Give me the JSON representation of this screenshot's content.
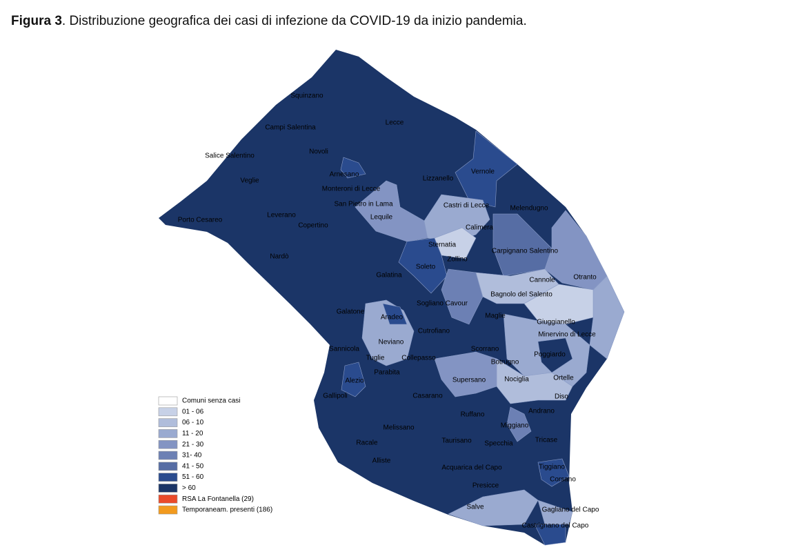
{
  "caption": {
    "label": "Figura 3",
    "text": ". Distribuzione geografica dei casi di infezione da COVID-19 da inizio pandemia."
  },
  "towns": [
    "Squinzano",
    "Campi Salentina",
    "Lecce",
    "Novoli",
    "Salice Salentino",
    "Arnesano",
    "Veglie",
    "Lizzanello",
    "Vernole",
    "Monteroni di Lecce",
    "San Pietro in Lama",
    "Castri di Lecce",
    "Melendugno",
    "Lequile",
    "Porto Cesareo",
    "Leverano",
    "Copertino",
    "Calimera",
    "Sternatia",
    "Carpignano Salentino",
    "Zollino",
    "Soleto",
    "Nardò",
    "Galatina",
    "Cannole",
    "Otranto",
    "Bagnolo del Salento",
    "Sogliano Cavour",
    "Galatone",
    "Aradeo",
    "Maglie",
    "Giuggianello",
    "Cutrofiano",
    "Minervino di Lecce",
    "Neviano",
    "Sannicola",
    "Scorrano",
    "Poggiardo",
    "Tuglie",
    "Collepasso",
    "Botrugno",
    "Parabita",
    "Ortelle",
    "Alezio",
    "Supersano",
    "Nociglia",
    "Gallipoli",
    "Casarano",
    "Diso",
    "Andrano",
    "Ruffano",
    "Miggiano",
    "Melissano",
    "Tricase",
    "Racale",
    "Taurisano",
    "Specchia",
    "Alliste",
    "Acquarica del Capo",
    "Tiggiano",
    "Corsano",
    "Presicce",
    "Salve",
    "Gagliano del Capo",
    "Castrignano del Capo"
  ],
  "legend": [
    {
      "label": "Comuni senza casi",
      "color": "#ffffff"
    },
    {
      "label": "01 - 06",
      "color": "#c7d1e7"
    },
    {
      "label": "06 - 10",
      "color": "#b0bddb"
    },
    {
      "label": "11 - 20",
      "color": "#9aaad0"
    },
    {
      "label": "21 - 30",
      "color": "#8394c3"
    },
    {
      "label": "31- 40",
      "color": "#6c80b4"
    },
    {
      "label": "41 - 50",
      "color": "#566da4"
    },
    {
      "label": "51 - 60",
      "color": "#2a4b8e"
    },
    {
      "label": "> 60",
      "color": "#1b3567"
    },
    {
      "label": "RSA La Fontanella (29)",
      "color": "#ea4a2a"
    },
    {
      "label": "Temporaneam. presenti (186)",
      "color": "#f29a1e"
    }
  ]
}
